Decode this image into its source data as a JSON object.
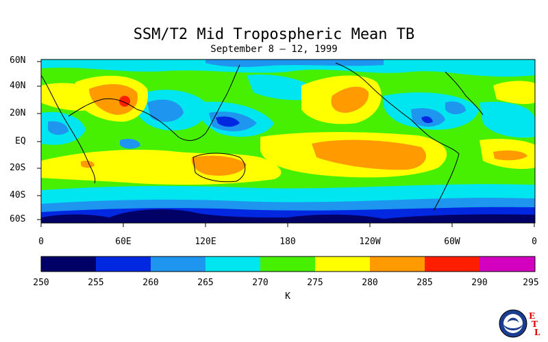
{
  "title": "SSM/T2 Mid Tropospheric Mean TB",
  "subtitle": "September 8 – 12, 1999",
  "lat_labels": [
    "60N",
    "40N",
    "20N",
    "EQ",
    "20S",
    "40S",
    "60S"
  ],
  "lon_labels": [
    "0",
    "60E",
    "120E",
    "180",
    "120W",
    "60W",
    "0"
  ],
  "colorbar": {
    "levels": [
      "250",
      "255",
      "260",
      "265",
      "270",
      "275",
      "280",
      "285",
      "290",
      "295"
    ],
    "colors": [
      "#000066",
      "#0028e0",
      "#1e96f0",
      "#00e6f0",
      "#46f000",
      "#ffff00",
      "#ff9a00",
      "#ff1e00",
      "#d400c0"
    ],
    "unit": "K"
  },
  "logo": {
    "text": "NOAA",
    "letters": [
      "E",
      "T",
      "L"
    ]
  }
}
